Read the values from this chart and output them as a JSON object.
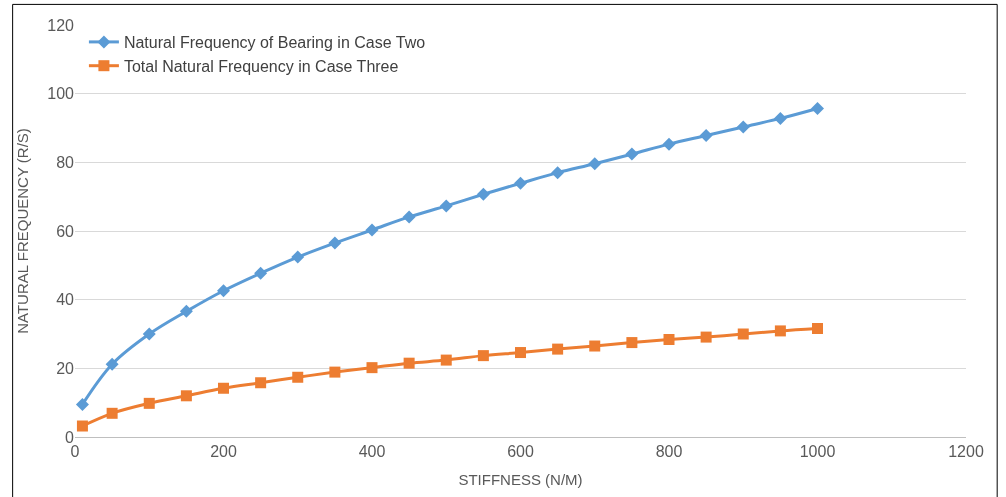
{
  "chart_data": {
    "type": "line",
    "xlabel": "STIFFNESS (N/M)",
    "ylabel": "NATURAL FREQUENCY (R/S)",
    "x": [
      10,
      50,
      100,
      150,
      200,
      250,
      300,
      350,
      400,
      450,
      500,
      550,
      600,
      650,
      700,
      750,
      800,
      850,
      900,
      950,
      1000
    ],
    "series": [
      {
        "name": "Natural Frequency of Bearing in Case Two",
        "color": "#5b9bd5",
        "marker": "diamond",
        "values": [
          9.5,
          21.2,
          30,
          36.6,
          42.6,
          47.7,
          52.4,
          56.5,
          60.3,
          64.1,
          67.3,
          70.7,
          73.9,
          77,
          79.6,
          82.4,
          85.3,
          87.8,
          90.3,
          92.8,
          95.7
        ]
      },
      {
        "name": "Total Natural Frequency in Case Three",
        "color": "#ed7d31",
        "marker": "square",
        "values": [
          3.2,
          6.9,
          9.8,
          12,
          14.2,
          15.8,
          17.4,
          18.9,
          20.2,
          21.5,
          22.4,
          23.7,
          24.6,
          25.6,
          26.5,
          27.5,
          28.4,
          29.1,
          30,
          30.9,
          31.6
        ]
      }
    ],
    "xlim": [
      0,
      1200
    ],
    "xticks": [
      0,
      200,
      400,
      600,
      800,
      1000,
      1200
    ],
    "ylim": [
      0,
      120
    ],
    "yticks": [
      0,
      20,
      40,
      60,
      80,
      100,
      120
    ],
    "grid": "y",
    "legend": "top left",
    "line_style": "solid"
  }
}
